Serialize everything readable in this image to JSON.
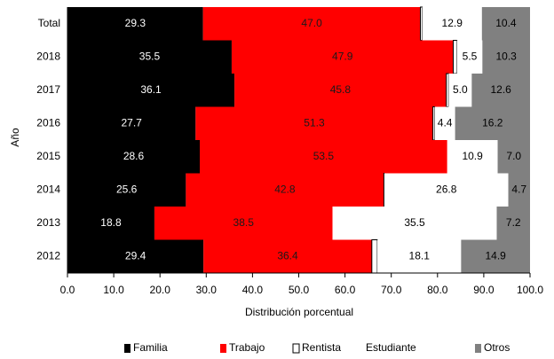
{
  "chart_data": {
    "type": "stacked-barh",
    "ylabel": "Año",
    "xlabel": "Distribución porcentual",
    "categories": [
      "Total",
      "2018",
      "2017",
      "2016",
      "2015",
      "2014",
      "2013",
      "2012"
    ],
    "series": [
      {
        "name": "Familia",
        "color": "#000000",
        "label_color": "#ffffff",
        "values": [
          29.3,
          35.5,
          36.1,
          27.7,
          28.6,
          25.6,
          18.8,
          29.4
        ],
        "value_labels": [
          "29.3",
          "35.5",
          "36.1",
          "27.7",
          "28.6",
          "25.6",
          "18.8",
          "29.4"
        ]
      },
      {
        "name": "Trabajo",
        "color": "#ff0000",
        "label_color": "#1a1a1a",
        "values": [
          47.0,
          47.9,
          45.8,
          51.3,
          53.5,
          42.8,
          38.5,
          36.4
        ],
        "value_labels": [
          "47.0",
          "47.9",
          "45.8",
          "51.3",
          "53.5",
          "42.8",
          "38.5",
          "36.4"
        ]
      },
      {
        "name": "Rentista",
        "color": "#ffffff",
        "edgecolor": "#000000",
        "values": [
          0.4,
          0.8,
          0.5,
          0.4,
          0.0,
          0.1,
          0.0,
          1.2
        ]
      },
      {
        "name": "Estudiante",
        "color": "#ffffff",
        "label_color": "#000000",
        "values": [
          12.9,
          5.5,
          5.0,
          4.4,
          10.9,
          26.8,
          35.5,
          18.1
        ],
        "value_labels": [
          "12.9",
          "5.5",
          "5.0",
          "4.4",
          "10.9",
          "26.8",
          "35.5",
          "18.1"
        ]
      },
      {
        "name": "Otros",
        "color": "#808080",
        "label_color": "#000000",
        "values": [
          10.4,
          10.3,
          12.6,
          16.2,
          7.0,
          4.7,
          7.2,
          14.9
        ],
        "value_labels": [
          "10.4",
          "10.3",
          "12.6",
          "16.2",
          "7.0",
          "4.7",
          "7.2",
          "14.9"
        ]
      }
    ],
    "xlim": [
      0,
      100
    ],
    "xticks": [
      {
        "value": 0,
        "label": "0.0"
      },
      {
        "value": 10,
        "label": "10.0"
      },
      {
        "value": 20,
        "label": "20.0"
      },
      {
        "value": 30,
        "label": "30.0"
      },
      {
        "value": 40,
        "label": "40.0"
      },
      {
        "value": 50,
        "label": "50.0"
      },
      {
        "value": 60,
        "label": "60.0"
      },
      {
        "value": 70,
        "label": "70.0"
      },
      {
        "value": 80,
        "label": "80.0"
      },
      {
        "value": 90,
        "label": "90.0"
      },
      {
        "value": 100,
        "label": "100.0"
      }
    ],
    "legend": "bottom"
  }
}
